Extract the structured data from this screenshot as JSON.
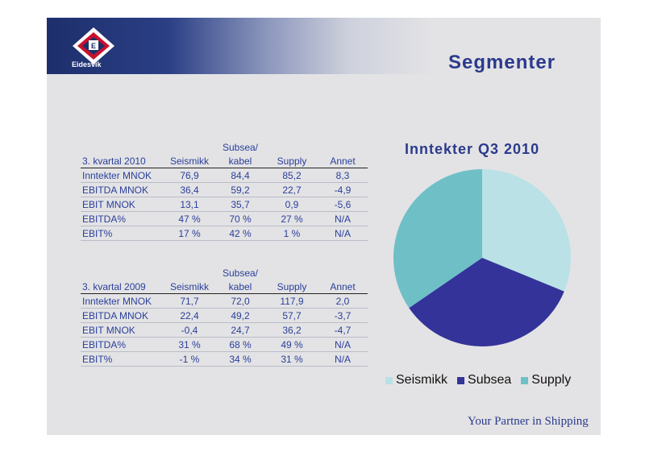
{
  "brand": {
    "name": "Eidesvik",
    "tagline": "Your Partner in Shipping",
    "logo_letter": "E"
  },
  "page_title": "Segmenter",
  "table_2010": {
    "header": [
      "3. kvartal 2010",
      "Seismikk",
      "Subsea/",
      "kabel",
      "Supply",
      "Annet"
    ],
    "rows": [
      [
        "Inntekter MNOK",
        "76,9",
        "84,4",
        "85,2",
        "8,3"
      ],
      [
        "EBITDA MNOK",
        "36,4",
        "59,2",
        "22,7",
        "-4,9"
      ],
      [
        "EBIT MNOK",
        "13,1",
        "35,7",
        "0,9",
        "-5,6"
      ],
      [
        "EBITDA%",
        "47 %",
        "70 %",
        "27 %",
        "N/A"
      ],
      [
        "EBIT%",
        "17 %",
        "42 %",
        "1 %",
        "N/A"
      ]
    ]
  },
  "table_2009": {
    "header": [
      "3. kvartal 2009",
      "Seismikk",
      "Subsea/",
      "kabel",
      "Supply",
      "Annet"
    ],
    "rows": [
      [
        "Inntekter MNOK",
        "71,7",
        "72,0",
        "117,9",
        "2,0"
      ],
      [
        "EBITDA MNOK",
        "22,4",
        "49,2",
        "57,7",
        "-3,7"
      ],
      [
        "EBIT MNOK",
        "-0,4",
        "24,7",
        "36,2",
        "-4,7"
      ],
      [
        "EBITDA%",
        "31 %",
        "68 %",
        "49 %",
        "N/A"
      ],
      [
        "EBIT%",
        "-1 %",
        "34 %",
        "31 %",
        "N/A"
      ]
    ]
  },
  "chart_data": {
    "type": "pie",
    "title": "Inntekter Q3 2010",
    "categories": [
      "Seismikk",
      "Subsea",
      "Supply"
    ],
    "values": [
      76.9,
      84.4,
      85.2
    ],
    "colors": [
      "#b9e1e6",
      "#33339a",
      "#6fbfc7"
    ],
    "legend_position": "bottom"
  }
}
